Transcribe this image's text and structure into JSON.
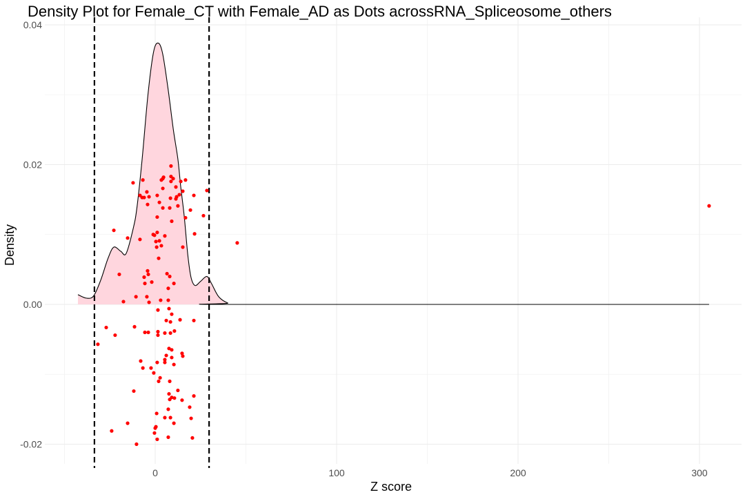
{
  "chart_data": {
    "type": "area",
    "title": "Density Plot for Female_CT with Female_AD as Dots acrossRNA_Spliceosome_others",
    "xlabel": "Z score",
    "ylabel": "Density",
    "xlim": [
      -52,
      318
    ],
    "ylim": [
      -0.0227,
      0.0411
    ],
    "x_ticks": [
      0,
      100,
      200,
      300
    ],
    "x_tick_labels": [
      "0",
      "100",
      "200",
      "300"
    ],
    "y_ticks": [
      -0.02,
      0.0,
      0.02,
      0.04
    ],
    "y_tick_labels": [
      "-0.02",
      "0.00",
      "0.02",
      "0.04"
    ],
    "grid": true,
    "colors": {
      "fill": "#ffd6de",
      "line": "#000000",
      "points": "#ff0000",
      "threshold": "#000000",
      "grid": "#ebebeb"
    },
    "thresholds": [
      -33.5,
      29.7
    ],
    "density": {
      "x": [
        -42.6,
        -38,
        -34,
        -30,
        -26,
        -22.8,
        -19,
        -16,
        -12,
        -10,
        -7.2,
        -4,
        -1,
        1.5,
        4,
        7,
        10,
        12.5,
        14,
        16,
        18,
        19.8,
        22,
        25,
        28.5,
        31,
        35,
        40,
        45,
        305.3
      ],
      "y": [
        0.0014,
        0.0009,
        0.0012,
        0.0035,
        0.0066,
        0.0082,
        0.0076,
        0.0073,
        0.011,
        0.014,
        0.0208,
        0.03,
        0.036,
        0.0374,
        0.036,
        0.031,
        0.025,
        0.0208,
        0.017,
        0.0126,
        0.007,
        0.0038,
        0.0027,
        0.0033,
        0.004,
        0.003,
        0.0011,
        0.0002,
        0.0,
        0.0
      ]
    },
    "points": [
      [
        8.7,
        0.0198
      ],
      [
        -6.8,
        0.0178
      ],
      [
        -12.2,
        0.0174
      ],
      [
        4.6,
        0.0182
      ],
      [
        4.2,
        0.018
      ],
      [
        3.4,
        0.0178
      ],
      [
        8.7,
        0.0183
      ],
      [
        9.9,
        0.018
      ],
      [
        8.7,
        0.0176
      ],
      [
        14.1,
        0.0176
      ],
      [
        16.7,
        0.0178
      ],
      [
        4.2,
        0.0166
      ],
      [
        11.4,
        0.0168
      ],
      [
        15.2,
        0.0162
      ],
      [
        28.5,
        0.0163
      ],
      [
        -4.6,
        0.0161
      ],
      [
        -8.4,
        0.0156
      ],
      [
        -7.2,
        0.0153
      ],
      [
        -6.1,
        0.0153
      ],
      [
        -3.4,
        0.0154
      ],
      [
        1.1,
        0.0156
      ],
      [
        8.4,
        0.0152
      ],
      [
        11.8,
        0.0154
      ],
      [
        11.4,
        0.0151
      ],
      [
        13.3,
        0.0157
      ],
      [
        21.3,
        0.0156
      ],
      [
        2.3,
        0.0146
      ],
      [
        -4.2,
        0.0143
      ],
      [
        4.2,
        0.0138
      ],
      [
        8.0,
        0.0138
      ],
      [
        12.5,
        0.0141
      ],
      [
        19.4,
        0.0135
      ],
      [
        26.6,
        0.0127
      ],
      [
        1.1,
        0.0125
      ],
      [
        16.7,
        0.0124
      ],
      [
        9.1,
        0.0119
      ],
      [
        -22.8,
        0.0106
      ],
      [
        21.7,
        0.0101
      ],
      [
        -1.1,
        0.01
      ],
      [
        -0.4,
        0.0099
      ],
      [
        1.1,
        0.0103
      ],
      [
        5.3,
        0.0098
      ],
      [
        -15.2,
        0.0095
      ],
      [
        -8.4,
        0.0093
      ],
      [
        0.4,
        0.009
      ],
      [
        2.3,
        0.0091
      ],
      [
        3.4,
        0.0084
      ],
      [
        0.8,
        0.0082
      ],
      [
        15.2,
        0.0082
      ],
      [
        45.2,
        0.0088
      ],
      [
        1.9,
        0.0066
      ],
      [
        -19.8,
        0.0043
      ],
      [
        -4.2,
        0.0048
      ],
      [
        -3.8,
        0.0043
      ],
      [
        -6.1,
        0.0039
      ],
      [
        -5.7,
        0.003
      ],
      [
        -1.9,
        0.0032
      ],
      [
        6.5,
        0.0044
      ],
      [
        8.0,
        0.004
      ],
      [
        10.3,
        0.003
      ],
      [
        7.2,
        0.0023
      ],
      [
        -10.6,
        0.0011
      ],
      [
        -4.6,
        0.0011
      ],
      [
        -17.5,
        0.0004
      ],
      [
        -3.4,
        0.0003
      ],
      [
        3.0,
        0.0006
      ],
      [
        7.2,
        0.0006
      ],
      [
        1.5,
        -0.0008
      ],
      [
        7.6,
        -0.0006
      ],
      [
        9.1,
        -0.0014
      ],
      [
        6.1,
        -0.0023
      ],
      [
        8.4,
        -0.0025
      ],
      [
        13.7,
        -0.0022
      ],
      [
        21.3,
        -0.0023
      ],
      [
        -27.0,
        -0.0033
      ],
      [
        -11.4,
        -0.0032
      ],
      [
        -22.1,
        -0.0044
      ],
      [
        -5.7,
        -0.004
      ],
      [
        -3.8,
        -0.004
      ],
      [
        1.5,
        -0.0039
      ],
      [
        1.5,
        -0.0044
      ],
      [
        5.3,
        -0.0041
      ],
      [
        8.4,
        -0.0041
      ],
      [
        10.6,
        -0.0038
      ],
      [
        -31.6,
        -0.0057
      ],
      [
        7.6,
        -0.0063
      ],
      [
        9.1,
        -0.0065
      ],
      [
        14.8,
        -0.007
      ],
      [
        15.2,
        -0.0074
      ],
      [
        6.1,
        -0.0073
      ],
      [
        5.3,
        -0.0079
      ],
      [
        9.1,
        -0.0076
      ],
      [
        -8.0,
        -0.0081
      ],
      [
        1.1,
        -0.0083
      ],
      [
        5.3,
        -0.0083
      ],
      [
        10.3,
        -0.0086
      ],
      [
        -6.8,
        -0.0091
      ],
      [
        -2.3,
        -0.0091
      ],
      [
        -0.8,
        -0.0098
      ],
      [
        2.7,
        -0.0105
      ],
      [
        1.9,
        -0.011
      ],
      [
        8.0,
        -0.011
      ],
      [
        -11.8,
        -0.0124
      ],
      [
        7.6,
        -0.0128
      ],
      [
        12.5,
        -0.0123
      ],
      [
        9.1,
        -0.0133
      ],
      [
        10.6,
        -0.0134
      ],
      [
        8.0,
        -0.0136
      ],
      [
        14.8,
        -0.0137
      ],
      [
        21.3,
        -0.0131
      ],
      [
        19.0,
        -0.0147
      ],
      [
        7.2,
        -0.015
      ],
      [
        0.8,
        -0.0156
      ],
      [
        5.3,
        -0.0162
      ],
      [
        8.4,
        -0.0162
      ],
      [
        19.8,
        -0.0163
      ],
      [
        -15.2,
        -0.017
      ],
      [
        10.3,
        -0.017
      ],
      [
        0.4,
        -0.0175
      ],
      [
        0.0,
        -0.0177
      ],
      [
        -24.0,
        -0.0181
      ],
      [
        -0.4,
        -0.0184
      ],
      [
        7.2,
        -0.019
      ],
      [
        1.1,
        -0.0193
      ],
      [
        20.5,
        -0.0191
      ],
      [
        -10.3,
        -0.02
      ],
      [
        305.3,
        0.0141
      ]
    ]
  }
}
